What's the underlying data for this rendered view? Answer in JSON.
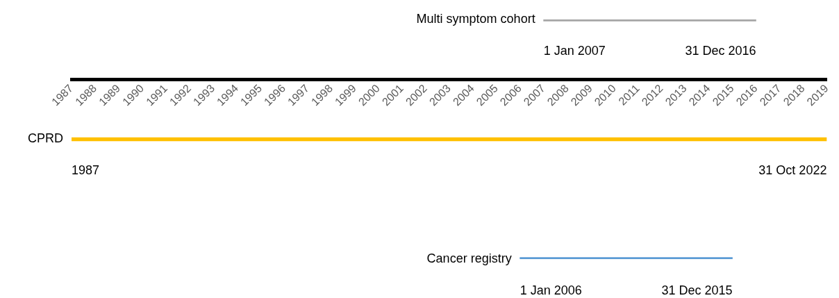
{
  "chart_data": {
    "type": "bar",
    "orientation": "horizontal",
    "categories": [
      "Multi symptom cohort",
      "CPRD",
      "Cancer registry"
    ],
    "base": [
      2007,
      1987,
      2006
    ],
    "values": [
      9,
      32,
      9
    ],
    "colors": [
      "#a6a6a6",
      "#ffc000",
      "#5b9bd5"
    ],
    "xlim": [
      1987,
      2019
    ],
    "xticks": [
      1987,
      1988,
      1989,
      1990,
      1991,
      1992,
      1993,
      1994,
      1995,
      1996,
      1997,
      1998,
      1999,
      2000,
      2001,
      2002,
      2003,
      2004,
      2005,
      2006,
      2007,
      2008,
      2009,
      2010,
      2011,
      2012,
      2013,
      2014,
      2015,
      2016,
      2017,
      2018,
      2019
    ],
    "grid": false,
    "annotations": [
      {
        "text": "1 Jan 2007",
        "x": 2007,
        "y": "Multi symptom cohort"
      },
      {
        "text": "31 Dec 2016",
        "x": 2016,
        "y": "Multi symptom cohort"
      },
      {
        "text": "1987",
        "x": 1987,
        "y": "CPRD"
      },
      {
        "text": "31 Oct 2022",
        "x": 2019,
        "y": "CPRD"
      },
      {
        "text": "1 Jan 2006",
        "x": 2006,
        "y": "Cancer registry"
      },
      {
        "text": "31 Dec 2015",
        "x": 2015,
        "y": "Cancer registry"
      }
    ]
  }
}
